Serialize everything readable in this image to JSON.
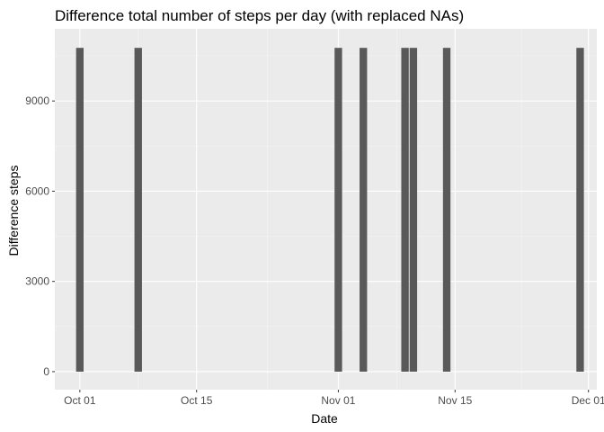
{
  "chart_data": {
    "type": "bar",
    "title": "Difference total number of steps per day (with replaced NAs)",
    "xlabel": "Date",
    "ylabel": "Difference steps",
    "x_axis_type": "date",
    "xlim": [
      "2012-09-28",
      "2012-12-02"
    ],
    "ylim": [
      -600,
      11400
    ],
    "x_ticks": [
      {
        "date": "2012-10-01",
        "label": "Oct 01"
      },
      {
        "date": "2012-10-15",
        "label": "Oct 15"
      },
      {
        "date": "2012-11-01",
        "label": "Nov 01"
      },
      {
        "date": "2012-11-15",
        "label": "Nov 15"
      },
      {
        "date": "2012-12-01",
        "label": "Dec 01"
      }
    ],
    "y_ticks": [
      0,
      3000,
      6000,
      9000
    ],
    "bars": [
      {
        "date": "2012-10-01",
        "value": 10766.19
      },
      {
        "date": "2012-10-08",
        "value": 10766.19
      },
      {
        "date": "2012-11-01",
        "value": 10766.19
      },
      {
        "date": "2012-11-04",
        "value": 10766.19
      },
      {
        "date": "2012-11-09",
        "value": 10766.19
      },
      {
        "date": "2012-11-10",
        "value": 10766.19
      },
      {
        "date": "2012-11-14",
        "value": 10766.19
      },
      {
        "date": "2012-11-30",
        "value": 10766.19
      }
    ],
    "grid": true,
    "legend": "none",
    "colors": {
      "panel": "#ebebeb",
      "grid_major": "#ffffff",
      "grid_minor": "#f4f4f4",
      "bar": "#595959",
      "tick": "#333333"
    }
  }
}
